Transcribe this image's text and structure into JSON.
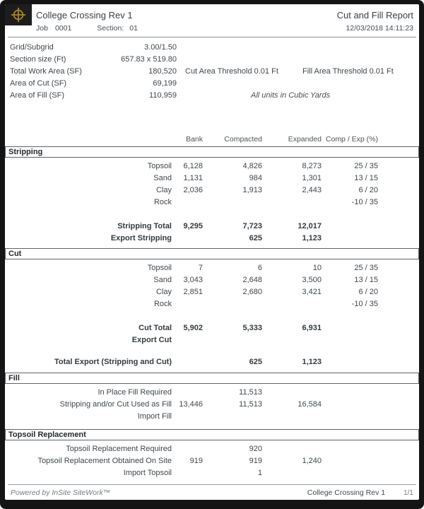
{
  "theme": {
    "accent_gold": "#a8871c",
    "frame_color": "#141414",
    "text_color": "#3f474d"
  },
  "header": {
    "project_title": "College Crossing Rev 1",
    "report_title": "Cut and Fill Report",
    "job_label": "Job",
    "job_value": "0001",
    "section_label": "Section:",
    "section_value": "01",
    "datetime": "12/03/2018  14:11:23"
  },
  "summary": {
    "rows": [
      {
        "label": "Grid/Subgrid",
        "value": "3.00/1.50"
      },
      {
        "label": "Section size (Ft)",
        "value": "657.83 x 519.80"
      },
      {
        "label": "Total Work Area (SF)",
        "value": "180,520"
      },
      {
        "label": "Area of Cut (SF)",
        "value": "69,199"
      },
      {
        "label": "Area of Fill (SF)",
        "value": "110,959"
      }
    ],
    "cut_area_threshold": "Cut Area Threshold 0.01 Ft",
    "fill_area_threshold": "Fill Area Threshold 0.01 Ft",
    "units_note": "All units in Cubic Yards"
  },
  "table": {
    "columns": [
      "Bank",
      "Compacted",
      "Expanded",
      "Comp / Exp (%)"
    ],
    "sections": [
      {
        "id": "stripping",
        "header": "Stripping",
        "rows": [
          {
            "label": "Topsoil",
            "bank": "6,128",
            "compacted": "4,826",
            "expanded": "8,273",
            "comp_exp": "25 / 35"
          },
          {
            "label": "Sand",
            "bank": "1,131",
            "compacted": "984",
            "expanded": "1,301",
            "comp_exp": "13 / 15"
          },
          {
            "label": "Clay",
            "bank": "2,036",
            "compacted": "1,913",
            "expanded": "2,443",
            "comp_exp": "6 / 20"
          },
          {
            "label": "Rock",
            "bank": "",
            "compacted": "",
            "expanded": "",
            "comp_exp": "-10 / 35"
          },
          {
            "spacer": true
          },
          {
            "label": "Stripping Total",
            "bank": "9,295",
            "compacted": "7,723",
            "expanded": "12,017",
            "comp_exp": "",
            "bold": true
          },
          {
            "label": "Export Stripping",
            "bank": "",
            "compacted": "625",
            "expanded": "1,123",
            "comp_exp": "",
            "bold": true
          }
        ]
      },
      {
        "id": "cut",
        "header": "Cut",
        "rows": [
          {
            "label": "Topsoil",
            "bank": "7",
            "compacted": "6",
            "expanded": "10",
            "comp_exp": "25 / 35"
          },
          {
            "label": "Sand",
            "bank": "3,043",
            "compacted": "2,648",
            "expanded": "3,500",
            "comp_exp": "13 / 15"
          },
          {
            "label": "Clay",
            "bank": "2,851",
            "compacted": "2,680",
            "expanded": "3,421",
            "comp_exp": "6 / 20"
          },
          {
            "label": "Rock",
            "bank": "",
            "compacted": "",
            "expanded": "",
            "comp_exp": "-10 / 35"
          },
          {
            "spacer": true
          },
          {
            "label": "Cut Total",
            "bank": "5,902",
            "compacted": "5,333",
            "expanded": "6,931",
            "comp_exp": "",
            "bold": true
          },
          {
            "label": "Export Cut",
            "bank": "",
            "compacted": "",
            "expanded": "",
            "comp_exp": "",
            "bold": true
          }
        ]
      },
      {
        "id": "total-export",
        "header": null,
        "rows": [
          {
            "label": "Total Export (Stripping and Cut)",
            "bank": "",
            "compacted": "625",
            "expanded": "1,123",
            "comp_exp": "",
            "bold": true
          }
        ]
      },
      {
        "id": "fill",
        "header": "Fill",
        "rows": [
          {
            "label": "In Place Fill Required",
            "bank": "",
            "compacted": "11,513",
            "expanded": "",
            "comp_exp": ""
          },
          {
            "label": "Stripping and/or Cut Used as Fill",
            "bank": "13,446",
            "compacted": "11,513",
            "expanded": "16,584",
            "comp_exp": ""
          },
          {
            "label": "Import Fill",
            "bank": "",
            "compacted": "",
            "expanded": "",
            "comp_exp": ""
          }
        ]
      },
      {
        "id": "topsoil-replacement",
        "header": "Topsoil Replacement",
        "rows": [
          {
            "label": "Topsoil Replacement Required",
            "bank": "",
            "compacted": "920",
            "expanded": "",
            "comp_exp": ""
          },
          {
            "label": "Topsoil Replacement Obtained On Site",
            "bank": "919",
            "compacted": "919",
            "expanded": "1,240",
            "comp_exp": ""
          },
          {
            "label": "Import Topsoil",
            "bank": "",
            "compacted": "1",
            "expanded": "",
            "comp_exp": ""
          }
        ]
      }
    ]
  },
  "footer": {
    "powered_by": "Powered by InSite SiteWork™",
    "project": "College Crossing Rev 1",
    "page": "1/1"
  }
}
